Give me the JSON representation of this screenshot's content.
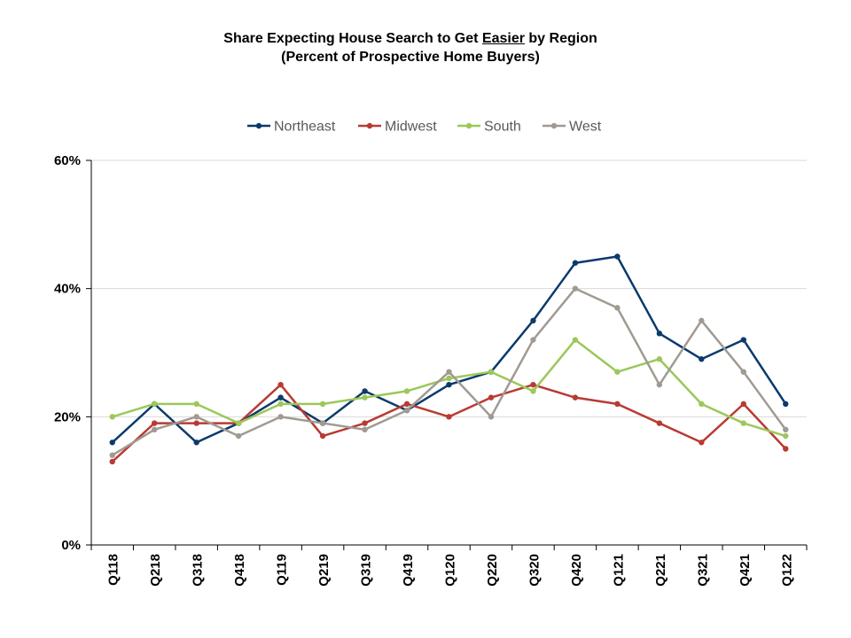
{
  "chart_data": {
    "type": "line",
    "title_pre": "Share Expecting House Search to Get ",
    "title_emph": "Easier",
    "title_post": " by Region",
    "subtitle": "(Percent of Prospective Home Buyers)",
    "categories": [
      "Q118",
      "Q218",
      "Q318",
      "Q418",
      "Q119",
      "Q219",
      "Q319",
      "Q419",
      "Q120",
      "Q220",
      "Q320",
      "Q420",
      "Q121",
      "Q221",
      "Q321",
      "Q421",
      "Q122"
    ],
    "y_ticks": [
      "0%",
      "20%",
      "40%",
      "60%"
    ],
    "ylim": [
      0,
      60
    ],
    "y_tick_values": [
      0,
      20,
      40,
      60
    ],
    "grid": true,
    "legend_position": "top",
    "series": [
      {
        "name": "Northeast",
        "color": "#0b3a6b",
        "values": [
          16,
          22,
          16,
          19,
          23,
          19,
          24,
          21,
          25,
          27,
          35,
          44,
          45,
          33,
          29,
          32,
          22
        ]
      },
      {
        "name": "Midwest",
        "color": "#b83b33",
        "values": [
          13,
          19,
          19,
          19,
          25,
          17,
          19,
          22,
          20,
          23,
          25,
          23,
          22,
          19,
          16,
          22,
          15
        ]
      },
      {
        "name": "South",
        "color": "#9bc85a",
        "values": [
          20,
          22,
          22,
          19,
          22,
          22,
          23,
          24,
          26,
          27,
          24,
          32,
          27,
          29,
          22,
          19,
          17
        ]
      },
      {
        "name": "West",
        "color": "#a09a92",
        "values": [
          14,
          18,
          20,
          17,
          20,
          19,
          18,
          21,
          27,
          20,
          32,
          40,
          37,
          25,
          35,
          27,
          18
        ]
      }
    ]
  }
}
